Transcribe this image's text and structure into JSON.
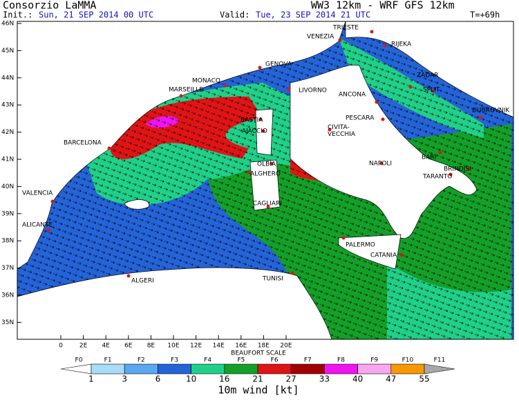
{
  "header": {
    "org": "Consorzio LaMMA",
    "model": "WW3 12km - WRF GFS 12km",
    "init_label": "Init.:",
    "init": "Sun, 21 SEP 2014  00 UTC",
    "valid_label": "Valid:",
    "valid": "Tue, 23 SEP 2014  21 UTC",
    "lead": "T=+69h"
  },
  "lat_ticks": [
    "46N",
    "45N",
    "44N",
    "43N",
    "42N",
    "41N",
    "40N",
    "39N",
    "38N",
    "37N",
    "36N",
    "35N"
  ],
  "lon_ticks": [
    "0",
    "2E",
    "4E",
    "6E",
    "8E",
    "10E",
    "12E",
    "14E",
    "16E",
    "18E",
    "20E"
  ],
  "cities": [
    "TRIESTE",
    "VENEZIA",
    "RIJEKA",
    "GENOVA",
    "MONACO",
    "MARSEILLE",
    "LIVORNO",
    "ANCONA",
    "ZADAR",
    "SPLIT",
    "DUBROVNIK",
    "BASTIA",
    "AJACCIO",
    "PESCARA",
    "CIVITA-\nVECCHIA",
    "BARCELONA",
    "OLBIA",
    "ALGHERO",
    "NAPOLI",
    "BARI",
    "BRINDISI",
    "TARANTO",
    "VALENCIA",
    "CAGLIARI",
    "ALICANTE",
    "PALERMO",
    "CATANIA",
    "TUNISI",
    "ALGERI"
  ],
  "legend": {
    "title": "BEAUFORT SCALE",
    "classes": [
      {
        "label": "F0",
        "color": "#ffffff"
      },
      {
        "label": "F1",
        "color": "#a8dcf8"
      },
      {
        "label": "F2",
        "color": "#5aa8f0"
      },
      {
        "label": "F3",
        "color": "#2464d8"
      },
      {
        "label": "F4",
        "color": "#20d088"
      },
      {
        "label": "F5",
        "color": "#14a028"
      },
      {
        "label": "F6",
        "color": "#e01414"
      },
      {
        "label": "F7",
        "color": "#a00000"
      },
      {
        "label": "F8",
        "color": "#f014f0"
      },
      {
        "label": "F9",
        "color": "#f8a8f0"
      },
      {
        "label": "F10",
        "color": "#f89800"
      },
      {
        "label": "F11",
        "color": "#a8a8a8"
      }
    ],
    "speeds": [
      "1",
      "3",
      "6",
      "10",
      "16",
      "21",
      "27",
      "33",
      "40",
      "47",
      "55"
    ],
    "unit_label": "10m wind [kt]"
  }
}
